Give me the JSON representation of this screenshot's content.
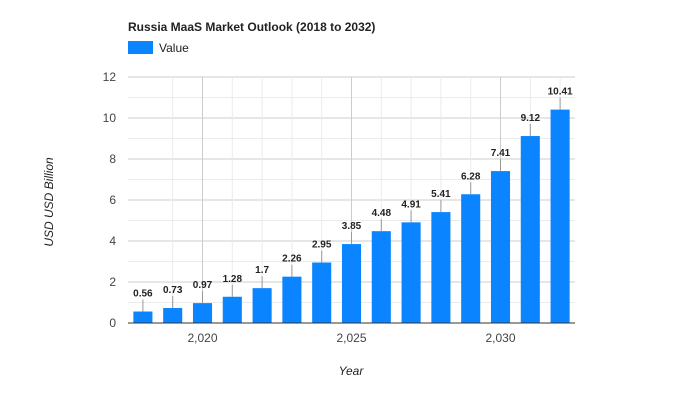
{
  "chart_data": {
    "type": "bar",
    "title": "Russia MaaS Market Outlook (2018 to 2032)",
    "xlabel": "Year",
    "ylabel": "USD USD Billion",
    "legend": {
      "position": "top-left",
      "entries": [
        "Value"
      ]
    },
    "grid": true,
    "color": "#0a84ff",
    "x": [
      2018,
      2019,
      2020,
      2021,
      2022,
      2023,
      2024,
      2025,
      2026,
      2027,
      2028,
      2029,
      2030,
      2031,
      2032
    ],
    "series": [
      {
        "name": "Value",
        "values": [
          0.56,
          0.73,
          0.97,
          1.28,
          1.7,
          2.26,
          2.95,
          3.85,
          4.48,
          4.91,
          5.41,
          6.28,
          7.41,
          9.12,
          10.41
        ],
        "labels": [
          "0.56",
          "0.73",
          "0.97",
          "1.28",
          "1.7",
          "2.26",
          "2.95",
          "3.85",
          "4.48",
          "4.91",
          "5.41",
          "6.28",
          "7.41",
          "9.12",
          "10.41"
        ]
      }
    ],
    "ylim": [
      0,
      12
    ],
    "xlim": [
      2017.5,
      2032.5
    ],
    "yticks": [
      0,
      2,
      4,
      6,
      8,
      10,
      12
    ],
    "ytick_labels": [
      "0",
      "2",
      "4",
      "6",
      "8",
      "10",
      "12"
    ],
    "xticks": [
      2020,
      2025,
      2030
    ],
    "xtick_labels": [
      "2,020",
      "2,025",
      "2,030"
    ]
  }
}
